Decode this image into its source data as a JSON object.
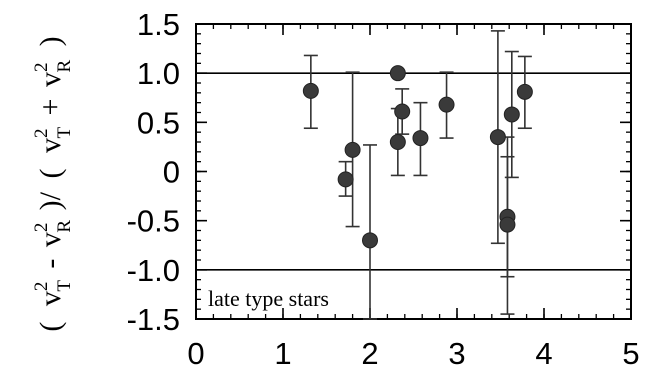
{
  "chart_data": {
    "type": "scatter",
    "title": "",
    "xlabel": "",
    "ylabel": "( v_T^2 - v_R^2 ) / ( v_T^2 + v_R^2 )",
    "ylabel_parts": {
      "open1": "(",
      "v1": "v",
      "sup1": "2",
      "sub1": "T",
      "minus": "-",
      "v2": "v",
      "sup2": "2",
      "sub2": "R",
      "close_slash": ")/",
      "open2": "(",
      "v3": "v",
      "sup3": "2",
      "sub3": "T",
      "plus": "+",
      "v4": "v",
      "sup4": "2",
      "sub4": "R",
      "close2": ")"
    },
    "xlim": [
      0,
      5
    ],
    "ylim": [
      -1.5,
      1.5
    ],
    "x_ticks": [
      {
        "value": 0,
        "label": "0"
      },
      {
        "value": 1,
        "label": "1"
      },
      {
        "value": 2,
        "label": "2"
      },
      {
        "value": 3,
        "label": "3"
      },
      {
        "value": 4,
        "label": "4"
      },
      {
        "value": 5,
        "label": "5"
      }
    ],
    "y_ticks": [
      {
        "value": 1.5,
        "label": "1.5"
      },
      {
        "value": 1.0,
        "label": "1.0"
      },
      {
        "value": 0.5,
        "label": "0.5"
      },
      {
        "value": 0,
        "label": "0"
      },
      {
        "value": -0.5,
        "label": "-0.5"
      },
      {
        "value": -1.0,
        "label": "-1.0"
      },
      {
        "value": -1.5,
        "label": "-1.5"
      }
    ],
    "minor_x_step": 0.2,
    "minor_y_step": 0.1,
    "reference_lines": [
      1.0,
      -1.0
    ],
    "grid": false,
    "annotation": "late type stars",
    "series": [
      {
        "points": [
          {
            "x": 1.32,
            "y": 0.82,
            "ylow": 0.44,
            "yhigh": 1.18
          },
          {
            "x": 1.72,
            "y": -0.08,
            "ylow": -0.25,
            "yhigh": 0.1
          },
          {
            "x": 1.8,
            "y": 0.22,
            "ylow": -0.56,
            "yhigh": 1.01
          },
          {
            "x": 2.0,
            "y": -0.7,
            "ylow": -1.5,
            "yhigh": 0.27
          },
          {
            "x": 2.32,
            "y": 1.0,
            "ylow": 1.0,
            "yhigh": 1.0
          },
          {
            "x": 2.32,
            "y": 0.3,
            "ylow": -0.04,
            "yhigh": 0.64
          },
          {
            "x": 2.37,
            "y": 0.61,
            "ylow": 0.38,
            "yhigh": 0.84
          },
          {
            "x": 2.58,
            "y": 0.34,
            "ylow": -0.04,
            "yhigh": 0.7
          },
          {
            "x": 2.88,
            "y": 0.68,
            "ylow": 0.34,
            "yhigh": 1.01
          },
          {
            "x": 3.47,
            "y": 0.35,
            "ylow": -0.73,
            "yhigh": 1.43
          },
          {
            "x": 3.58,
            "y": -0.46,
            "ylow": -1.07,
            "yhigh": 0.15
          },
          {
            "x": 3.58,
            "y": -0.54,
            "ylow": -1.45,
            "yhigh": 0.35
          },
          {
            "x": 3.63,
            "y": 0.58,
            "ylow": -0.06,
            "yhigh": 1.22
          },
          {
            "x": 3.78,
            "y": 0.81,
            "ylow": 0.44,
            "yhigh": 1.17
          }
        ]
      }
    ]
  }
}
